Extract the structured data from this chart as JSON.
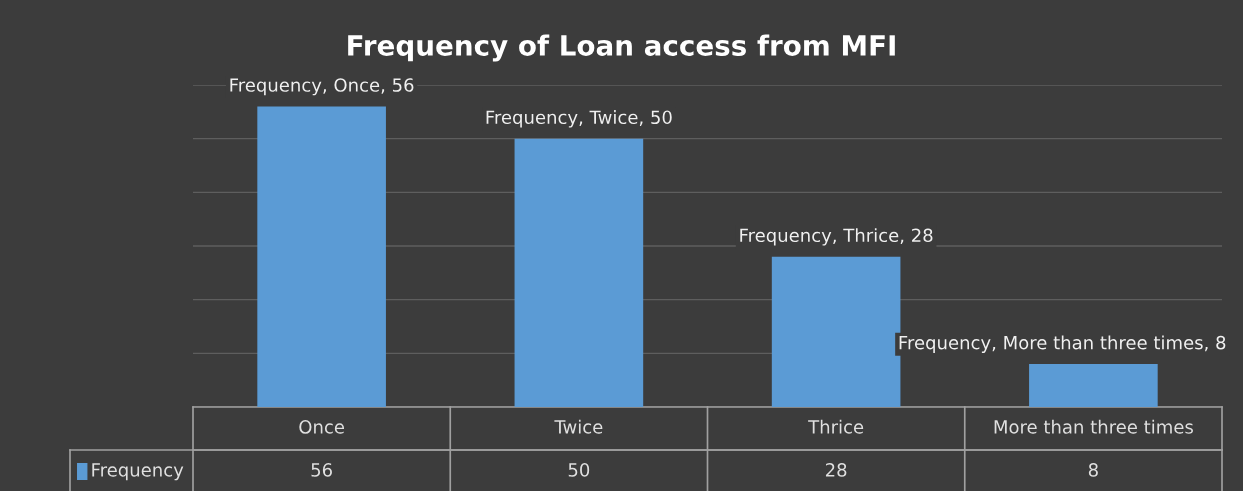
{
  "chart_data": {
    "type": "bar",
    "title": "Frequency of Loan access from MFI",
    "categories": [
      "Once",
      "Twice",
      "Thrice",
      "More than three times"
    ],
    "series": [
      {
        "name": "Frequency",
        "color": "#5b9bd5",
        "values": [
          56,
          50,
          28,
          8
        ]
      }
    ],
    "annotations": [
      {
        "text": "Frequency, Once, 56",
        "x": "Once",
        "y": 56
      },
      {
        "text": "Frequency, Twice, 50",
        "x": "Twice",
        "y": 50
      },
      {
        "text": "Frequency, Thrice, 28",
        "x": "Thrice",
        "y": 28
      },
      {
        "text": "Frequency, More than three times, 8",
        "x": "More than three times",
        "y": 8
      }
    ],
    "ylim": [
      0,
      60
    ],
    "yticks": [
      {
        "value": 0,
        "label": null
      },
      {
        "value": 10,
        "label": null
      },
      {
        "value": 20,
        "label": null
      },
      {
        "value": 30,
        "label": null
      },
      {
        "value": 40,
        "label": null
      },
      {
        "value": 50,
        "label": null
      },
      {
        "value": 60,
        "label": null
      }
    ],
    "grid": "y",
    "data_labels": true,
    "legend": "bottom"
  }
}
